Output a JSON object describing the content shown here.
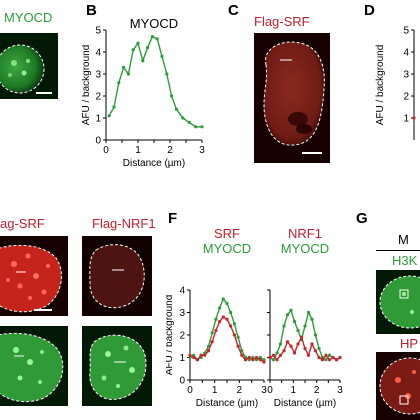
{
  "panels": {
    "B": "B",
    "C": "C",
    "D": "D",
    "F": "F",
    "G": "G"
  },
  "labels": {
    "top_left_green": "MYOCD",
    "c_title": "Flag-SRF",
    "e_left_title": "ag-SRF",
    "e_right_title": "Flag-NRF1",
    "g_top": "M",
    "g_h3": "H3K",
    "g_hp": "HP"
  },
  "colors": {
    "green": "#2e9b3a",
    "red": "#c8242c",
    "text_green": "#2b9a3a",
    "text_red": "#c21f2a"
  },
  "chart_data": [
    {
      "type": "line",
      "title": "MYOCD",
      "xlabel": "Distance (µm)",
      "ylabel": "AFU / background",
      "xlim": [
        0,
        3
      ],
      "ylim": [
        0,
        5
      ],
      "xticks": [
        0,
        0.5,
        1,
        1.5,
        2,
        2.5,
        3
      ],
      "xtick_labels": [
        "0",
        "",
        "1",
        "",
        "2",
        "",
        "3"
      ],
      "yticks": [
        0,
        1,
        2,
        3,
        4,
        5
      ],
      "series": [
        {
          "color": "#2e9b3a",
          "x": [
            0.1,
            0.25,
            0.4,
            0.55,
            0.7,
            0.85,
            1.0,
            1.15,
            1.3,
            1.45,
            1.6,
            1.75,
            1.9,
            2.05,
            2.2,
            2.4,
            2.6,
            2.8,
            3.0
          ],
          "y": [
            1.1,
            1.5,
            2.6,
            3.3,
            3.0,
            4.1,
            4.4,
            3.6,
            4.2,
            4.7,
            4.6,
            3.8,
            3.0,
            2.0,
            1.4,
            1.0,
            0.8,
            0.6,
            0.6
          ]
        }
      ]
    },
    {
      "type": "line",
      "title_lines": [
        [
          "SRF",
          "#c21f2a"
        ],
        [
          "MYOCD",
          "#2b9a3a"
        ]
      ],
      "xlabel": "Distance (µm)",
      "ylabel": "AFU / background",
      "xlim": [
        0,
        3
      ],
      "ylim": [
        0,
        4
      ],
      "xticks": [
        0,
        0.5,
        1,
        1.5,
        2,
        2.5,
        3
      ],
      "xtick_labels": [
        "0",
        "",
        "1",
        "",
        "2",
        "",
        "3"
      ],
      "yticks": [
        0,
        1,
        2,
        3,
        4
      ],
      "series": [
        {
          "color": "#2e9b3a",
          "x": [
            0,
            0.15,
            0.3,
            0.45,
            0.6,
            0.75,
            0.9,
            1.05,
            1.2,
            1.35,
            1.5,
            1.65,
            1.8,
            1.95,
            2.1,
            2.25,
            2.4,
            2.55,
            2.7,
            2.85,
            3.0
          ],
          "y": [
            1.0,
            1.1,
            0.9,
            1.0,
            1.2,
            1.5,
            2.1,
            2.7,
            3.2,
            3.6,
            3.4,
            3.0,
            2.5,
            1.9,
            1.3,
            1.0,
            0.9,
            1.0,
            0.9,
            1.0,
            0.9
          ]
        },
        {
          "color": "#c8242c",
          "x": [
            0,
            0.15,
            0.3,
            0.45,
            0.6,
            0.75,
            0.9,
            1.05,
            1.2,
            1.35,
            1.5,
            1.65,
            1.8,
            1.95,
            2.1,
            2.25,
            2.4,
            2.55,
            2.7,
            2.85,
            3.0
          ],
          "y": [
            1.1,
            1.0,
            0.9,
            1.1,
            1.1,
            1.3,
            1.7,
            2.2,
            2.6,
            2.8,
            2.7,
            2.4,
            2.0,
            1.5,
            1.1,
            0.9,
            1.0,
            0.9,
            1.0,
            0.9,
            0.8
          ]
        }
      ]
    },
    {
      "type": "line",
      "title_lines": [
        [
          "NRF1",
          "#c21f2a"
        ],
        [
          "MYOCD",
          "#2b9a3a"
        ]
      ],
      "xlabel": "Distance (µm)",
      "ylabel": "",
      "xlim": [
        0,
        3
      ],
      "ylim": [
        0,
        4
      ],
      "xticks": [
        0,
        0.5,
        1,
        1.5,
        2,
        2.5,
        3
      ],
      "xtick_labels": [
        "0",
        "",
        "1",
        "",
        "2",
        "",
        "3"
      ],
      "yticks": [
        0,
        1,
        2,
        3,
        4
      ],
      "series": [
        {
          "color": "#2e9b3a",
          "x": [
            0,
            0.15,
            0.3,
            0.45,
            0.6,
            0.75,
            0.9,
            1.05,
            1.2,
            1.35,
            1.5,
            1.65,
            1.8,
            1.95,
            2.1,
            2.25,
            2.4,
            2.55,
            2.7,
            2.85,
            3.0
          ],
          "y": [
            1.0,
            0.9,
            1.2,
            1.6,
            2.4,
            2.9,
            3.1,
            2.6,
            2.2,
            1.8,
            2.4,
            3.0,
            2.7,
            2.0,
            1.4,
            1.0,
            0.9,
            1.1,
            1.0,
            0.9,
            1.0
          ]
        },
        {
          "color": "#c8242c",
          "x": [
            0,
            0.15,
            0.3,
            0.45,
            0.6,
            0.75,
            0.9,
            1.05,
            1.2,
            1.35,
            1.5,
            1.65,
            1.8,
            1.95,
            2.1,
            2.25,
            2.4,
            2.55,
            2.7,
            2.85,
            3.0
          ],
          "y": [
            1.0,
            1.1,
            0.9,
            1.1,
            1.3,
            1.7,
            1.5,
            1.2,
            1.6,
            1.9,
            1.4,
            1.1,
            1.6,
            1.3,
            1.0,
            0.9,
            1.1,
            0.9,
            1.0,
            0.9,
            1.0
          ]
        }
      ]
    },
    {
      "type": "line",
      "xlabel": "",
      "ylabel": "AFU / background",
      "yticks": [
        1,
        2,
        3,
        4,
        5
      ],
      "series": []
    }
  ]
}
